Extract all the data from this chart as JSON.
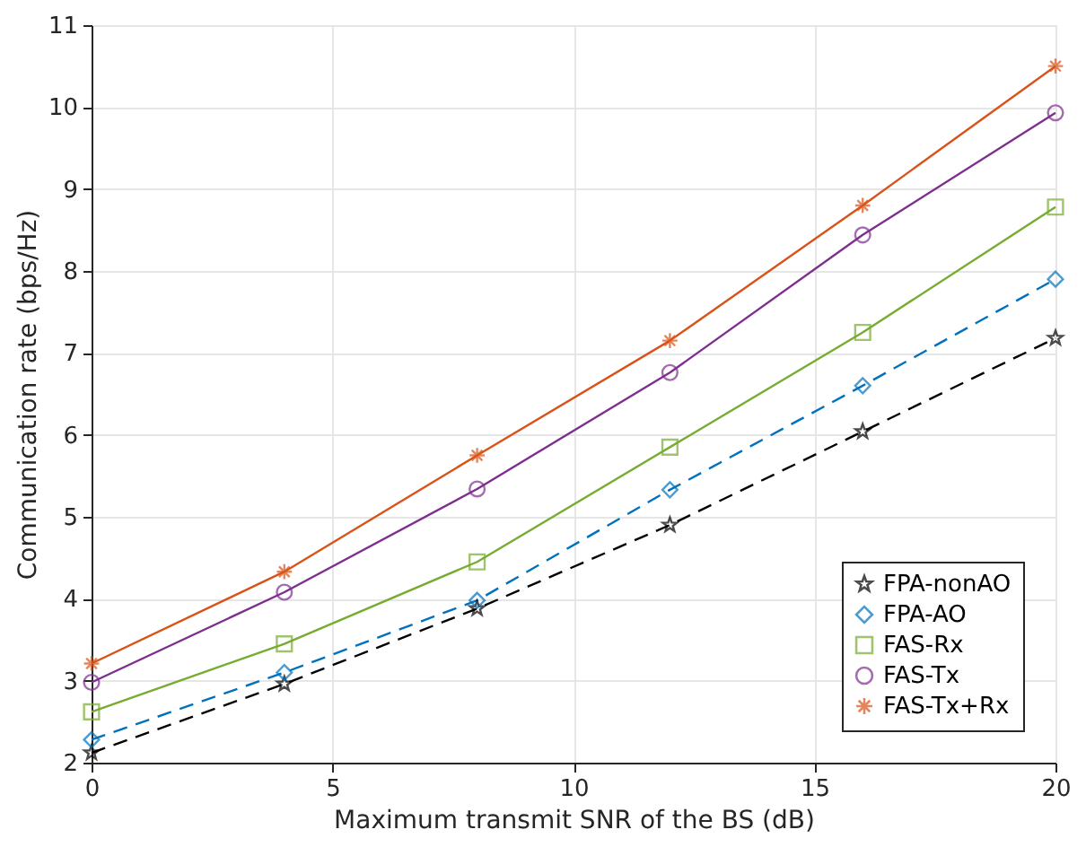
{
  "chart_data": {
    "type": "line",
    "xlabel": "Maximum transmit SNR of the BS (dB)",
    "ylabel": "Communication rate (bps/Hz)",
    "x": [
      0,
      4,
      8,
      12,
      16,
      20
    ],
    "series": [
      {
        "name": "FPA-nonAO",
        "color": "#000000",
        "marker": "star",
        "line_style": "dashed",
        "values": [
          2.12,
          2.96,
          3.88,
          4.9,
          6.04,
          7.18
        ]
      },
      {
        "name": "FPA-AO",
        "color": "#0072bd",
        "marker": "diamond",
        "line_style": "dashed",
        "values": [
          2.28,
          3.1,
          3.98,
          5.33,
          6.6,
          7.9
        ]
      },
      {
        "name": "FAS-Rx",
        "color": "#77ac30",
        "marker": "square",
        "line_style": "solid",
        "values": [
          2.62,
          3.45,
          4.45,
          5.85,
          7.25,
          8.78
        ]
      },
      {
        "name": "FAS-Tx",
        "color": "#7e2f8e",
        "marker": "circle",
        "line_style": "solid",
        "values": [
          2.98,
          4.08,
          5.34,
          6.76,
          8.44,
          9.93
        ]
      },
      {
        "name": "FAS-Tx+Rx",
        "color": "#d95319",
        "marker": "cross",
        "line_style": "solid",
        "values": [
          3.21,
          4.33,
          5.75,
          7.15,
          8.8,
          10.5
        ]
      }
    ],
    "xlim": [
      0,
      20
    ],
    "xticks": [
      0,
      5,
      10,
      15,
      20
    ],
    "ylim": [
      2,
      11
    ],
    "yticks": [
      2,
      3,
      4,
      5,
      6,
      7,
      8,
      9,
      10,
      11
    ],
    "grid": true,
    "legend": "bottom right"
  }
}
